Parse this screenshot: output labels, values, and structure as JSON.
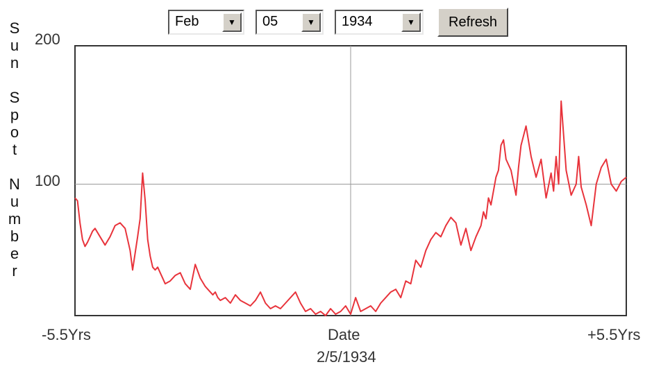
{
  "controls": {
    "month": "Feb",
    "day": "05",
    "year": "1934",
    "refresh_label": "Refresh"
  },
  "chart_data": {
    "type": "line",
    "ylabel": "Sun Spot Number",
    "xlabel": "Date",
    "center_date": "2/5/1934",
    "x_ticks": {
      "left": "-5.5Yrs",
      "center": "Date",
      "right": "+5.5Yrs"
    },
    "y_ticks": [
      {
        "value": 200,
        "label": "200"
      },
      {
        "value": 100,
        "label": "100"
      }
    ],
    "xlim": [
      -5.5,
      5.5
    ],
    "ylim": [
      5,
      200
    ],
    "grid": "center crosshair",
    "line_color": "#e8333b",
    "series": [
      {
        "x": [
          -5.5,
          -5.45,
          -5.4,
          -5.35,
          -5.3,
          -5.25,
          -5.2,
          -5.15,
          -5.1,
          -5.0,
          -4.9,
          -4.8,
          -4.7,
          -4.6,
          -4.5,
          -4.4,
          -4.35,
          -4.3,
          -4.25,
          -4.2,
          -4.15,
          -4.1,
          -4.05,
          -4.0,
          -3.95,
          -3.9,
          -3.85,
          -3.8,
          -3.75,
          -3.7,
          -3.6,
          -3.5,
          -3.4,
          -3.3,
          -3.2,
          -3.1,
          -3.0,
          -2.9,
          -2.8,
          -2.75,
          -2.7,
          -2.65,
          -2.6,
          -2.5,
          -2.4,
          -2.3,
          -2.2,
          -2.1,
          -2.0,
          -1.9,
          -1.8,
          -1.7,
          -1.6,
          -1.5,
          -1.4,
          -1.3,
          -1.2,
          -1.1,
          -1.0,
          -0.9,
          -0.8,
          -0.7,
          -0.6,
          -0.5,
          -0.4,
          -0.3,
          -0.2,
          -0.1,
          0.0,
          0.1,
          0.2,
          0.3,
          0.4,
          0.5,
          0.6,
          0.7,
          0.8,
          0.9,
          1.0,
          1.1,
          1.2,
          1.3,
          1.4,
          1.5,
          1.6,
          1.7,
          1.8,
          1.9,
          2.0,
          2.1,
          2.2,
          2.3,
          2.4,
          2.5,
          2.6,
          2.65,
          2.7,
          2.75,
          2.8,
          2.9,
          2.95,
          3.0,
          3.05,
          3.1,
          3.2,
          3.3,
          3.35,
          3.4,
          3.45,
          3.5,
          3.6,
          3.7,
          3.8,
          3.9,
          4.0,
          4.05,
          4.1,
          4.15,
          4.2,
          4.3,
          4.4,
          4.5,
          4.55,
          4.6,
          4.7,
          4.8,
          4.9,
          5.0,
          5.1,
          5.2,
          5.3,
          5.4,
          5.5
        ],
        "y": [
          90,
          88,
          72,
          60,
          55,
          58,
          62,
          66,
          68,
          62,
          56,
          62,
          70,
          72,
          68,
          52,
          38,
          50,
          62,
          75,
          108,
          88,
          60,
          48,
          40,
          38,
          40,
          36,
          32,
          28,
          30,
          34,
          36,
          28,
          24,
          42,
          32,
          26,
          22,
          20,
          22,
          18,
          16,
          18,
          14,
          20,
          16,
          14,
          12,
          16,
          22,
          14,
          10,
          12,
          10,
          14,
          18,
          22,
          14,
          8,
          10,
          6,
          8,
          5,
          10,
          6,
          8,
          12,
          6,
          18,
          8,
          10,
          12,
          8,
          14,
          18,
          22,
          24,
          18,
          30,
          28,
          45,
          40,
          52,
          60,
          65,
          62,
          70,
          76,
          72,
          56,
          68,
          52,
          62,
          70,
          80,
          75,
          90,
          85,
          105,
          110,
          128,
          132,
          118,
          110,
          92,
          112,
          128,
          135,
          142,
          120,
          105,
          118,
          90,
          108,
          95,
          120,
          100,
          160,
          110,
          92,
          100,
          120,
          98,
          85,
          70,
          100,
          112,
          118,
          100,
          95,
          102,
          105
        ]
      }
    ]
  }
}
